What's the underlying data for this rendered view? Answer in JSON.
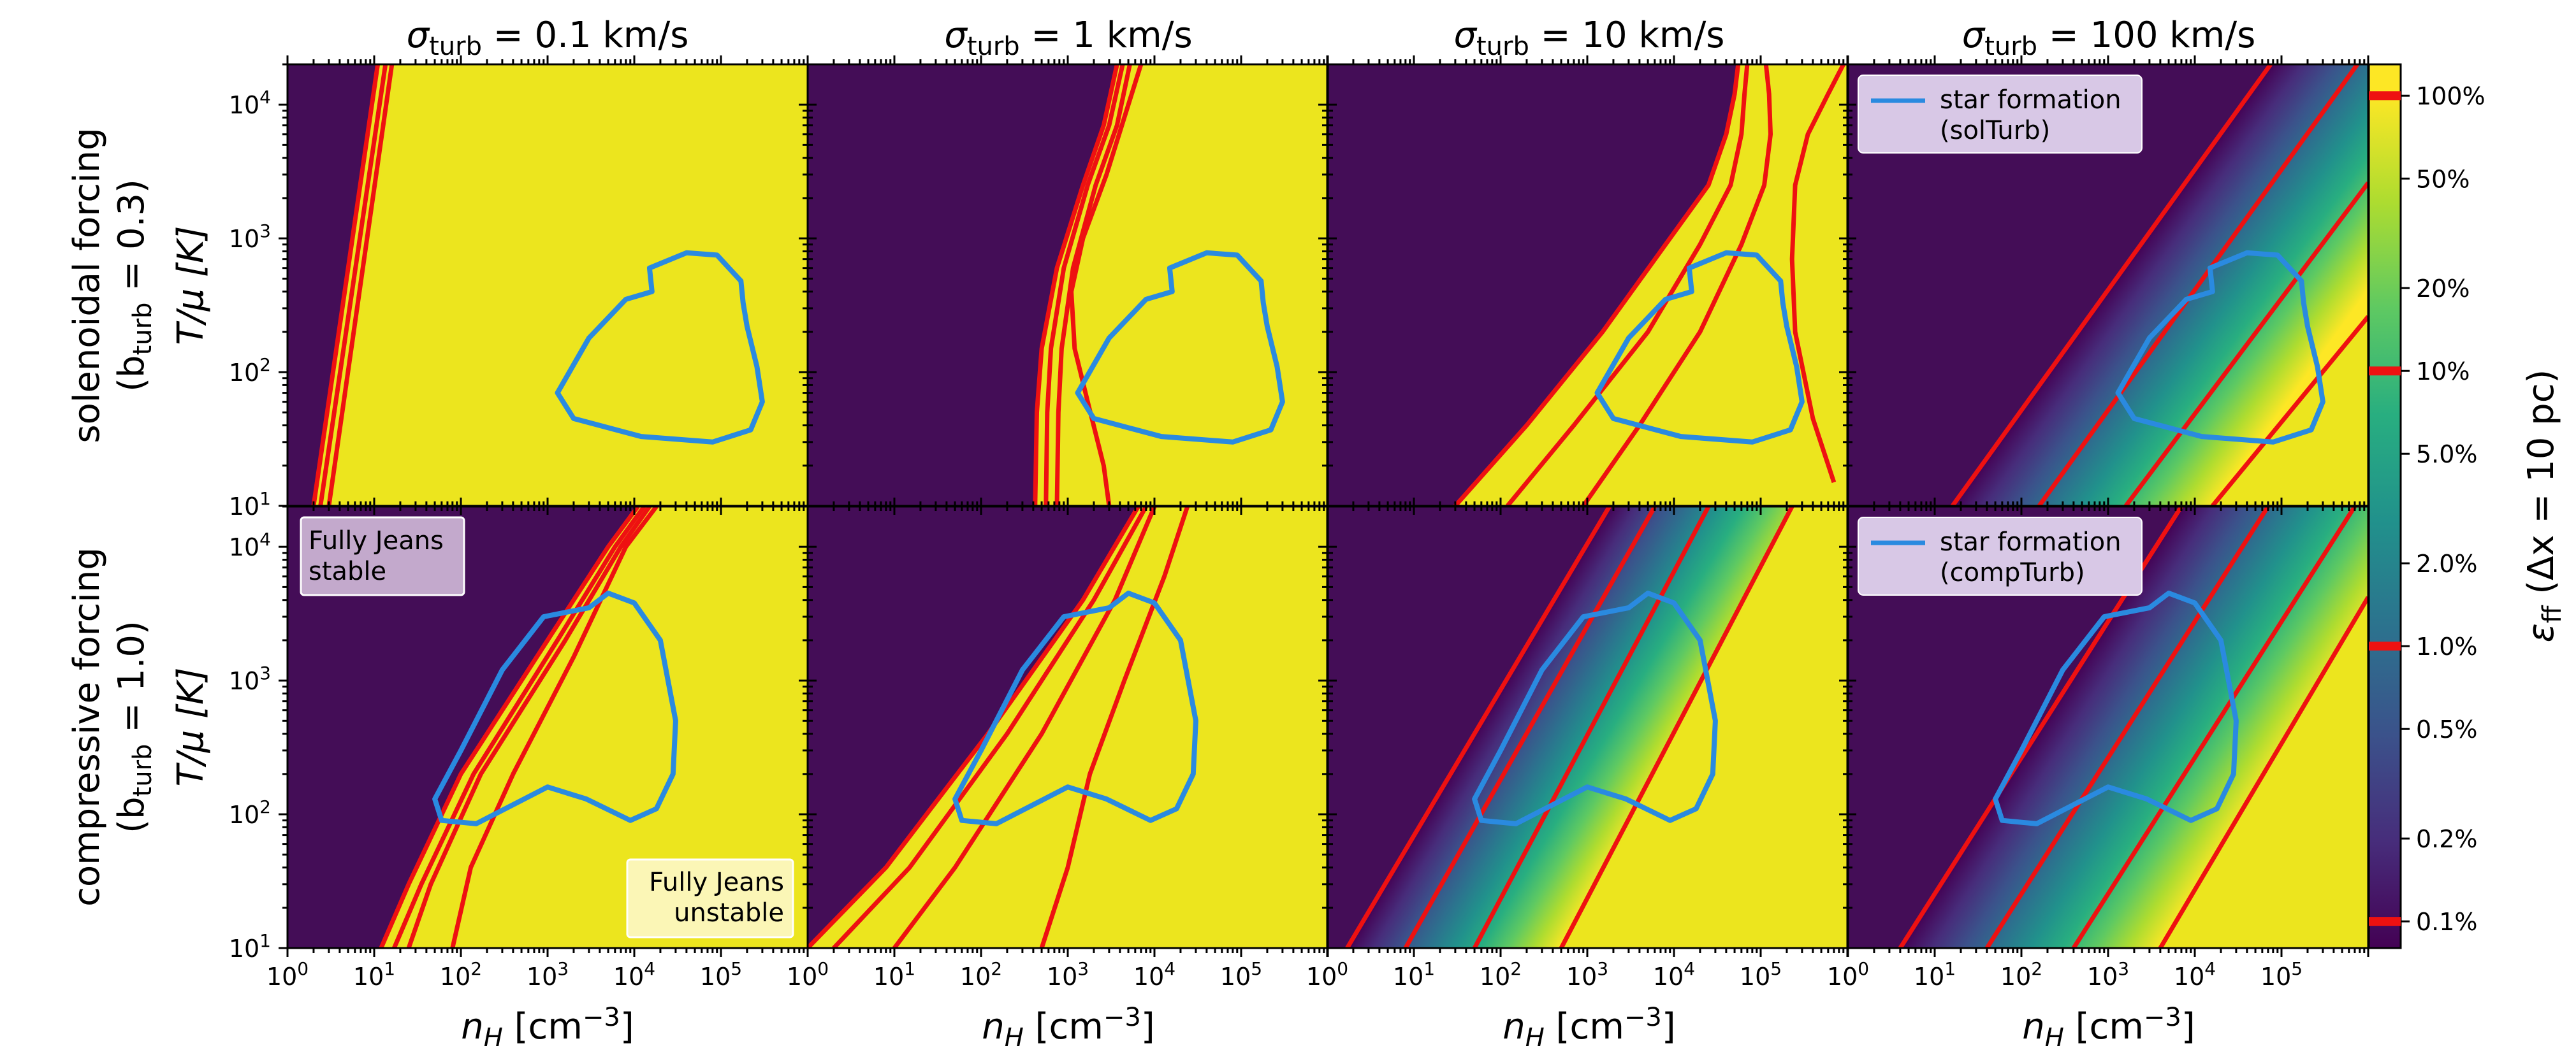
{
  "figure": {
    "column_titles": [
      {
        "prefix": "σ",
        "sub": "turb",
        "value": " = 0.1 km/s"
      },
      {
        "prefix": "σ",
        "sub": "turb",
        "value": " = 1 km/s"
      },
      {
        "prefix": "σ",
        "sub": "turb",
        "value": " = 10 km/s"
      },
      {
        "prefix": "σ",
        "sub": "turb",
        "value": " = 100 km/s"
      }
    ],
    "row_titles": [
      {
        "line1": "solenoidal forcing",
        "line2_prefix": "(b",
        "line2_sub": "turb",
        "line2_value": " = 0.3)"
      },
      {
        "line1": "compressive forcing",
        "line2_prefix": "(b",
        "line2_sub": "turb",
        "line2_value": " = 1.0)"
      }
    ],
    "ylabel": "T/μ [K]",
    "xlabel": {
      "base": "n",
      "sub": "H",
      "unit": " [cm",
      "exp": "−3",
      "close": "]"
    },
    "colorbar_label": {
      "base": "ε",
      "sub": "ff",
      "rest": " (Δx = 10 pc)"
    },
    "annotations": {
      "stable": [
        "Fully Jeans",
        "stable"
      ],
      "unstable": [
        "Fully Jeans",
        "unstable"
      ]
    },
    "legends": [
      {
        "panel": "top-right",
        "lines": [
          "star formation",
          "(solTurb)"
        ]
      },
      {
        "panel": "bottom-right",
        "lines": [
          "star formation",
          "(compTurb)"
        ]
      }
    ]
  },
  "colors": {
    "unstable": "#ece51e",
    "stable": "#440d57",
    "contour": "#ee1111",
    "star_formation": "#2a8ae0",
    "legend_bg": "#d8c8e6",
    "stable_box": "#c3a9cc",
    "unstable_box": "#fbf6b6"
  },
  "chart_data": {
    "type": "heatmap",
    "layout": "2x4 grid of panels with shared axes",
    "x": {
      "label": "n_H [cm^-3]",
      "scale": "log",
      "range": [
        1,
        1000000
      ],
      "tick_labels": [
        "10^0",
        "10^1",
        "10^2",
        "10^3",
        "10^4",
        "10^5"
      ]
    },
    "y": {
      "label": "T/mu [K]",
      "scale": "log",
      "range": [
        10,
        20000
      ],
      "tick_labels": [
        "10^1",
        "10^2",
        "10^3",
        "10^4"
      ]
    },
    "colorbar": {
      "scale": "log",
      "range": [
        0.0008,
        1.3
      ],
      "tick_values": [
        1.0,
        0.5,
        0.2,
        0.1,
        0.05,
        0.02,
        0.01,
        0.005,
        0.002,
        0.001
      ],
      "tick_labels": [
        "100%",
        "50%",
        "20%",
        "10%",
        "5.0%",
        "2.0%",
        "1.0%",
        "0.5%",
        "0.2%",
        "0.1%"
      ],
      "highlighted_levels": [
        1.0,
        0.1,
        0.01,
        0.001
      ]
    },
    "panels": [
      {
        "row": 0,
        "col": 0,
        "contour_levels": [
          "0.1%",
          "1%",
          "10%",
          "100%"
        ],
        "contour_lines": [
          [
            [
              2,
              10
            ],
            [
              11,
              20000
            ]
          ],
          [
            [
              2.4,
              10
            ],
            [
              13.5,
              20000
            ]
          ],
          [
            [
              3,
              10
            ],
            [
              16,
              20000
            ]
          ]
        ],
        "star_formation_contour": true
      },
      {
        "row": 0,
        "col": 1,
        "contour_levels": [
          "0.1%",
          "1%",
          "10%",
          "100%"
        ],
        "contour_lines": [
          [
            [
              420,
              10
            ],
            [
              440,
              50
            ],
            [
              500,
              150
            ],
            [
              750,
              600
            ],
            [
              1500,
              2500
            ],
            [
              2600,
              7000
            ],
            [
              3700,
              20000
            ]
          ],
          [
            [
              560,
              10
            ],
            [
              580,
              50
            ],
            [
              640,
              150
            ],
            [
              900,
              600
            ],
            [
              1700,
              2500
            ],
            [
              3000,
              7000
            ],
            [
              4300,
              20000
            ]
          ],
          [
            [
              750,
              10
            ],
            [
              780,
              50
            ],
            [
              850,
              150
            ],
            [
              1150,
              600
            ],
            [
              2100,
              2500
            ],
            [
              3700,
              7000
            ],
            [
              5200,
              20000
            ]
          ],
          [
            [
              3000,
              10
            ],
            [
              2600,
              20
            ],
            [
              1700,
              60
            ],
            [
              1200,
              150
            ],
            [
              1100,
              400
            ],
            [
              1500,
              1000
            ],
            [
              2800,
              3000
            ],
            [
              5000,
              10000
            ],
            [
              7000,
              20000
            ]
          ]
        ],
        "star_formation_contour": true
      },
      {
        "row": 0,
        "col": 2,
        "contour_levels": [
          "0.1%",
          "1%",
          "10%",
          "100%"
        ],
        "contour_lines": [
          [
            [
              30,
              10
            ],
            [
              200,
              40
            ],
            [
              1500,
              200
            ],
            [
              8000,
              900
            ],
            [
              25000,
              2500
            ],
            [
              40000,
              6000
            ],
            [
              50000,
              12000
            ],
            [
              55000,
              20000
            ]
          ],
          [
            [
              120,
              10
            ],
            [
              700,
              40
            ],
            [
              5000,
              200
            ],
            [
              20000,
              900
            ],
            [
              45000,
              2500
            ],
            [
              60000,
              6000
            ],
            [
              65000,
              12000
            ],
            [
              70000,
              20000
            ]
          ],
          [
            [
              900,
              10
            ],
            [
              4000,
              40
            ],
            [
              20000,
              200
            ],
            [
              60000,
              900
            ],
            [
              110000,
              2500
            ],
            [
              130000,
              6000
            ],
            [
              125000,
              12000
            ],
            [
              115000,
              20000
            ]
          ],
          [
            [
              700000,
              15
            ],
            [
              400000,
              45
            ],
            [
              250000,
              200
            ],
            [
              230000,
              700
            ],
            [
              250000,
              2500
            ],
            [
              350000,
              6000
            ],
            [
              600000,
              12000
            ],
            [
              900000,
              20000
            ]
          ]
        ],
        "star_formation_contour": true
      },
      {
        "row": 0,
        "col": 3,
        "contour_levels": [
          "0.1%",
          "1%",
          "10%",
          "100%"
        ],
        "contour_lines": [
          [
            [
              16,
              10
            ],
            [
              75000,
              20000
            ]
          ],
          [
            [
              160,
              10
            ],
            [
              750000,
              20000
            ]
          ],
          [
            [
              1600,
              10
            ],
            [
              1000000,
              2600
            ]
          ],
          [
            [
              16000,
              10
            ],
            [
              1000000,
              260
            ]
          ]
        ],
        "star_formation_contour": true
      },
      {
        "row": 1,
        "col": 0,
        "contour_levels": [
          "0.1%",
          "1%",
          "10%",
          "100%"
        ],
        "contour_lines": [
          [
            [
              12,
              10
            ],
            [
              25,
              30
            ],
            [
              100,
              200
            ],
            [
              1000,
              2000
            ],
            [
              5000,
              10000
            ],
            [
              11000,
              20000
            ]
          ],
          [
            [
              17,
              10
            ],
            [
              35,
              30
            ],
            [
              140,
              200
            ],
            [
              1300,
              2000
            ],
            [
              6000,
              10000
            ],
            [
              13000,
              20000
            ]
          ],
          [
            [
              25,
              10
            ],
            [
              45,
              30
            ],
            [
              170,
              200
            ],
            [
              1600,
              2000
            ],
            [
              7000,
              10000
            ],
            [
              15000,
              20000
            ]
          ],
          [
            [
              80,
              10
            ],
            [
              130,
              40
            ],
            [
              400,
              200
            ],
            [
              2000,
              1500
            ],
            [
              8000,
              10000
            ],
            [
              18000,
              20000
            ]
          ]
        ],
        "star_formation_contour": true
      },
      {
        "row": 1,
        "col": 1,
        "contour_levels": [
          "0.1%",
          "1%",
          "10%",
          "100%"
        ],
        "contour_lines": [
          [
            [
              1,
              10
            ],
            [
              8,
              40
            ],
            [
              120,
              400
            ],
            [
              1500,
              4000
            ],
            [
              6500,
              20000
            ]
          ],
          [
            [
              2,
              10
            ],
            [
              15,
              40
            ],
            [
              200,
              400
            ],
            [
              2000,
              4000
            ],
            [
              8000,
              20000
            ]
          ],
          [
            [
              10,
              10
            ],
            [
              50,
              40
            ],
            [
              500,
              400
            ],
            [
              3500,
              4000
            ],
            [
              10000,
              20000
            ]
          ],
          [
            [
              500,
              10
            ],
            [
              1000,
              40
            ],
            [
              1800,
              200
            ],
            [
              4500,
              1000
            ],
            [
              13000,
              6000
            ],
            [
              24000,
              20000
            ]
          ]
        ],
        "star_formation_contour": true
      },
      {
        "row": 1,
        "col": 2,
        "contour_levels": [
          "0.1%",
          "1%",
          "10%",
          "100%"
        ],
        "contour_lines": [
          [
            [
              1.7,
              10
            ],
            [
              1800,
              20000
            ]
          ],
          [
            [
              8,
              10
            ],
            [
              6000,
              20000
            ]
          ],
          [
            [
              50,
              10
            ],
            [
              25000,
              20000
            ]
          ],
          [
            [
              500,
              10
            ],
            [
              230000,
              20000
            ]
          ]
        ],
        "star_formation_contour": true
      },
      {
        "row": 1,
        "col": 3,
        "contour_levels": [
          "0.1%",
          "1%",
          "10%",
          "100%"
        ],
        "contour_lines": [
          [
            [
              4,
              10
            ],
            [
              7000,
              20000
            ]
          ],
          [
            [
              40,
              10
            ],
            [
              70000,
              20000
            ]
          ],
          [
            [
              400,
              10
            ],
            [
              700000,
              20000
            ]
          ],
          [
            [
              4000,
              10
            ],
            [
              1000000,
              4200
            ]
          ]
        ],
        "star_formation_contour": true
      }
    ],
    "star_formation_contours": {
      "solTurb": [
        [
          16000,
          400
        ],
        [
          8000,
          350
        ],
        [
          3000,
          180
        ],
        [
          1300,
          70
        ],
        [
          2000,
          45
        ],
        [
          12000,
          33
        ],
        [
          80000,
          30
        ],
        [
          220000,
          37
        ],
        [
          300000,
          60
        ],
        [
          260000,
          110
        ],
        [
          200000,
          220
        ],
        [
          180000,
          330
        ],
        [
          170000,
          480
        ],
        [
          90000,
          750
        ],
        [
          40000,
          780
        ],
        [
          15000,
          600
        ]
      ],
      "compTurb": [
        [
          3000,
          3500
        ],
        [
          900,
          3000
        ],
        [
          300,
          1200
        ],
        [
          100,
          300
        ],
        [
          50,
          130
        ],
        [
          60,
          90
        ],
        [
          150,
          85
        ],
        [
          1000,
          160
        ],
        [
          2800,
          130
        ],
        [
          9000,
          90
        ],
        [
          18000,
          110
        ],
        [
          28000,
          200
        ],
        [
          30000,
          500
        ],
        [
          20000,
          2000
        ],
        [
          10000,
          3800
        ],
        [
          5000,
          4500
        ]
      ]
    }
  }
}
